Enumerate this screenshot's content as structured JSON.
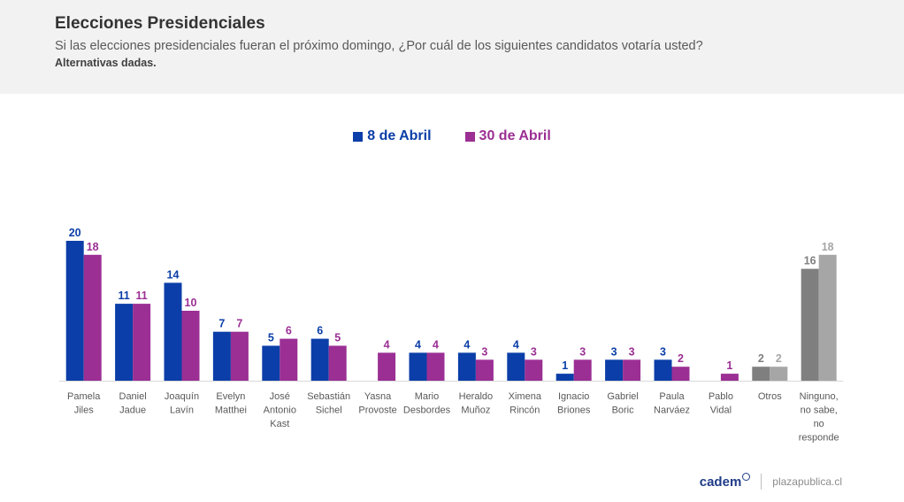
{
  "header": {
    "title": "Elecciones Presidenciales",
    "subtitle": "Si las elecciones presidenciales fueran el próximo domingo, ¿Por cuál de los siguientes candidatos votaría usted?",
    "note": "Alternativas dadas."
  },
  "colors": {
    "series1": "#0b3ea8",
    "series2": "#9b2f94",
    "series1_other": "#7f7f7f",
    "series2_other": "#a6a6a6"
  },
  "chart_data": {
    "type": "bar",
    "categories": [
      [
        "Pamela",
        "Jiles"
      ],
      [
        "Daniel",
        "Jadue"
      ],
      [
        "Joaquín",
        "Lavín"
      ],
      [
        "Evelyn",
        "Matthei"
      ],
      [
        "José",
        "Antonio",
        "Kast"
      ],
      [
        "Sebastián",
        "Sichel"
      ],
      [
        "Yasna",
        "Provoste"
      ],
      [
        "Mario",
        "Desbordes"
      ],
      [
        "Heraldo",
        "Muñoz"
      ],
      [
        "Ximena",
        "Rincón"
      ],
      [
        "Ignacio",
        "Briones"
      ],
      [
        "Gabriel",
        "Boric"
      ],
      [
        "Paula",
        "Narváez"
      ],
      [
        "Pablo",
        "Vidal"
      ],
      [
        "Otros"
      ],
      [
        "Ninguno,",
        "no sabe,",
        "no",
        "responde"
      ]
    ],
    "series": [
      {
        "name": "8 de Abril",
        "values": [
          20,
          11,
          14,
          7,
          5,
          6,
          null,
          4,
          4,
          4,
          1,
          3,
          3,
          null,
          2,
          16
        ]
      },
      {
        "name": "30 de Abril",
        "values": [
          18,
          11,
          10,
          7,
          6,
          5,
          4,
          4,
          3,
          3,
          3,
          3,
          2,
          1,
          2,
          18
        ]
      }
    ],
    "grey_categories": [
      14,
      15
    ],
    "legend_position": "top-center",
    "grid": false
  },
  "footer": {
    "brand": "cadem",
    "site": "plazapublica.cl"
  }
}
